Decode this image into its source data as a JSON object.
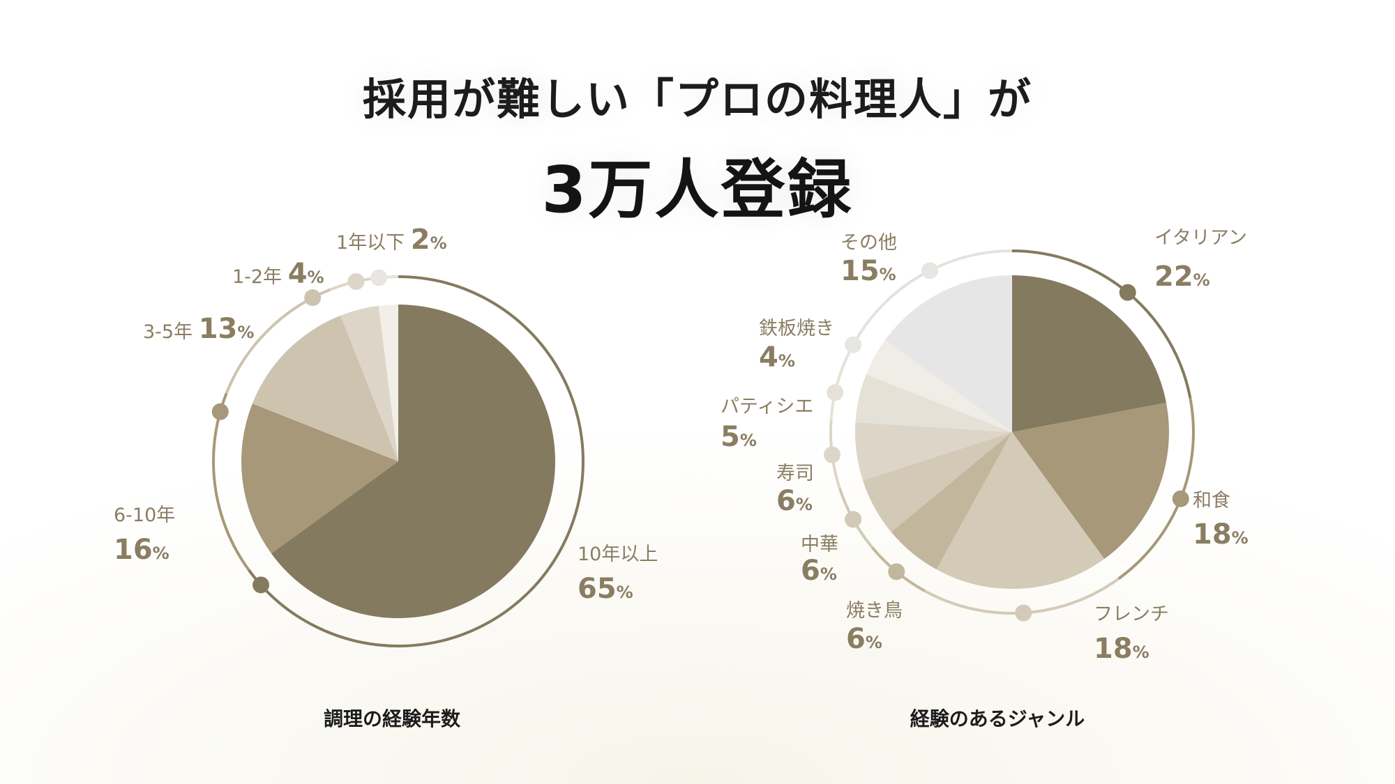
{
  "header": {
    "title_line1": "採用が難しい「プロの料理人」が",
    "title_line2": "3万人登録"
  },
  "captions": {
    "left": "調理の経験年数",
    "right": "経験のあるジャンル"
  },
  "colors": {
    "dark": "#847a5f",
    "medium": "#a69878",
    "light1": "#cfc5b1",
    "light2": "#e0dace",
    "pale": "#f0ede6",
    "gray": "#e6e6e6",
    "label": "#8a7d62"
  },
  "chart_data": [
    {
      "type": "pie",
      "title": "調理の経験年数",
      "unit": "%",
      "slices": [
        {
          "label": "10年以上",
          "value": 65,
          "color": "#847a5f"
        },
        {
          "label": "6-10年",
          "value": 16,
          "color": "#a69878"
        },
        {
          "label": "3-5年",
          "value": 13,
          "color": "#cdc3af"
        },
        {
          "label": "1-2年",
          "value": 4,
          "color": "#ddd6c8"
        },
        {
          "label": "1年以下",
          "value": 2,
          "color": "#f1efe8"
        }
      ]
    },
    {
      "type": "pie",
      "title": "経験のあるジャンル",
      "unit": "%",
      "slices": [
        {
          "label": "イタリアン",
          "value": 22,
          "color": "#847a5f"
        },
        {
          "label": "和食",
          "value": 18,
          "color": "#a69878"
        },
        {
          "label": "フレンチ",
          "value": 18,
          "color": "#d3cab7"
        },
        {
          "label": "焼き鳥",
          "value": 6,
          "color": "#c2b69d"
        },
        {
          "label": "中華",
          "value": 6,
          "color": "#d2c9b7"
        },
        {
          "label": "寿司",
          "value": 6,
          "color": "#ddd6c8"
        },
        {
          "label": "パティシエ",
          "value": 5,
          "color": "#e6e1d6"
        },
        {
          "label": "鉄板焼き",
          "value": 4,
          "color": "#f0ede6"
        },
        {
          "label": "その他",
          "value": 15,
          "color": "#e6e6e6"
        }
      ]
    }
  ]
}
